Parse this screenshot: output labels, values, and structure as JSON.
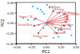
{
  "chart_data": {
    "type": "scatter",
    "xlabel": "PC1",
    "ylabel": "PC2",
    "xlim": [
      -0.5,
      0.5
    ],
    "ylim": [
      -0.4,
      0.4
    ],
    "xticks": [
      {
        "value": -0.5,
        "label": "−0.50"
      },
      {
        "value": -0.25,
        "label": "−0.25"
      },
      {
        "value": 0.0,
        "label": "0.00"
      },
      {
        "value": 0.25,
        "label": "0.25"
      },
      {
        "value": 0.5,
        "label": "0.50"
      }
    ],
    "yticks": [
      {
        "value": -0.4,
        "label": "−0.40"
      },
      {
        "value": -0.2,
        "label": "−0.20"
      },
      {
        "value": 0.0,
        "label": "0.00"
      },
      {
        "value": 0.2,
        "label": "0.20"
      },
      {
        "value": 0.4,
        "label": "0.40"
      }
    ],
    "grid": true,
    "series": [
      {
        "type": "scatter",
        "color": "#30b8e0",
        "x": [
          -0.38,
          -0.3,
          -0.22,
          -0.14,
          -0.09,
          -0.06,
          -0.03,
          0.02,
          0.06,
          0.11,
          0.16,
          0.19,
          -0.2,
          -0.12,
          -0.04,
          0.01,
          0.11,
          0.16,
          0.21,
          0.26,
          0.31,
          0.38,
          0.41,
          0.43,
          0.13,
          0.21,
          -0.09
        ],
        "values": [
          0.1,
          0.06,
          0.32,
          0.28,
          0.26,
          0.22,
          0.18,
          0.35,
          0.3,
          0.3,
          0.27,
          0.2,
          0.06,
          -0.04,
          -0.1,
          -0.04,
          -0.02,
          -0.1,
          -0.14,
          -0.09,
          -0.17,
          -0.04,
          -0.07,
          -0.24,
          -0.29,
          -0.27,
          -0.29
        ]
      },
      {
        "type": "arrow",
        "color": "#d04040",
        "origin": [
          0,
          0
        ],
        "x": [
          0.14,
          0.25,
          0.33,
          0.38,
          0.38,
          0.36,
          0.33,
          0.28,
          0.2,
          -0.2,
          -0.22,
          -0.14
        ],
        "values": [
          0.26,
          0.22,
          0.18,
          0.14,
          0.08,
          0.02,
          -0.06,
          -0.14,
          -0.22,
          0.1,
          -0.06,
          -0.22
        ]
      }
    ],
    "annotations": [
      {
        "text": "RT (Slow)",
        "x": 0.05,
        "y": 0.3
      },
      {
        "text": "Stroop",
        "x": 0.18,
        "y": 0.26
      },
      {
        "text": "STR (Stroop)",
        "x": 0.26,
        "y": 0.2
      },
      {
        "text": "TMT (TrailsB)",
        "x": 0.3,
        "y": 0.16
      },
      {
        "text": "Digit",
        "x": 0.3,
        "y": 0.1
      },
      {
        "text": "CWIT",
        "x": 0.3,
        "y": 0.04
      },
      {
        "text": "Digit Span",
        "x": 0.26,
        "y": -0.04
      },
      {
        "text": "Vocabulary",
        "x": 0.21,
        "y": -0.12
      },
      {
        "text": "Similarities",
        "x": 0.13,
        "y": -0.2
      },
      {
        "text": "Stroop C-W",
        "x": -0.45,
        "y": 0.12
      },
      {
        "text": "Stroop Word",
        "x": -0.47,
        "y": -0.04
      },
      {
        "text": "Stroop Colour",
        "x": -0.22,
        "y": -0.26
      }
    ]
  }
}
